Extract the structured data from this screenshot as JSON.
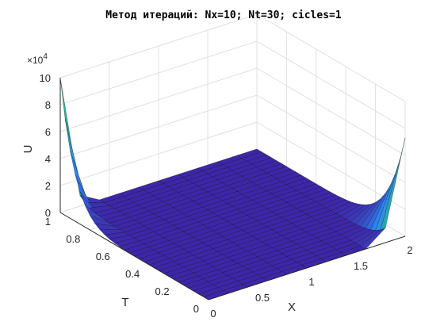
{
  "chart_data": {
    "type": "surface",
    "title": "Метод итераций: Nx=10; Nt=30; cicles=1",
    "xlabel": "X",
    "ylabel": "T",
    "zlabel": "U",
    "z_exponent_label": "×10",
    "z_exponent_power": "4",
    "xlim": [
      0,
      2
    ],
    "ylim": [
      0,
      1
    ],
    "zlim": [
      0,
      100000
    ],
    "x_ticks": [
      "0",
      "0.5",
      "1",
      "1.5",
      "2"
    ],
    "y_ticks": [
      "0",
      "0.2",
      "0.4",
      "0.6",
      "0.8",
      "1"
    ],
    "z_ticks": [
      "0",
      "2",
      "4",
      "6",
      "8",
      "10"
    ],
    "grid": true,
    "colormap": "parula",
    "x": [
      0,
      0.2,
      0.4,
      0.6,
      0.8,
      1.0,
      1.2,
      1.4,
      1.6,
      1.8,
      2.0
    ],
    "nt": 30,
    "t_range": [
      0,
      1
    ],
    "boundary_peak_x0_t1": 100000,
    "boundary_peak_x2_t0": 73000,
    "interior_level": 0,
    "colors": {
      "parula_dark": "#3e26a8",
      "parula_blue": "#2e87f7",
      "parula_green": "#28b88b",
      "parula_yellow": "#f9fb15",
      "grid": "#e0e0e0",
      "axis": "#262626"
    }
  }
}
